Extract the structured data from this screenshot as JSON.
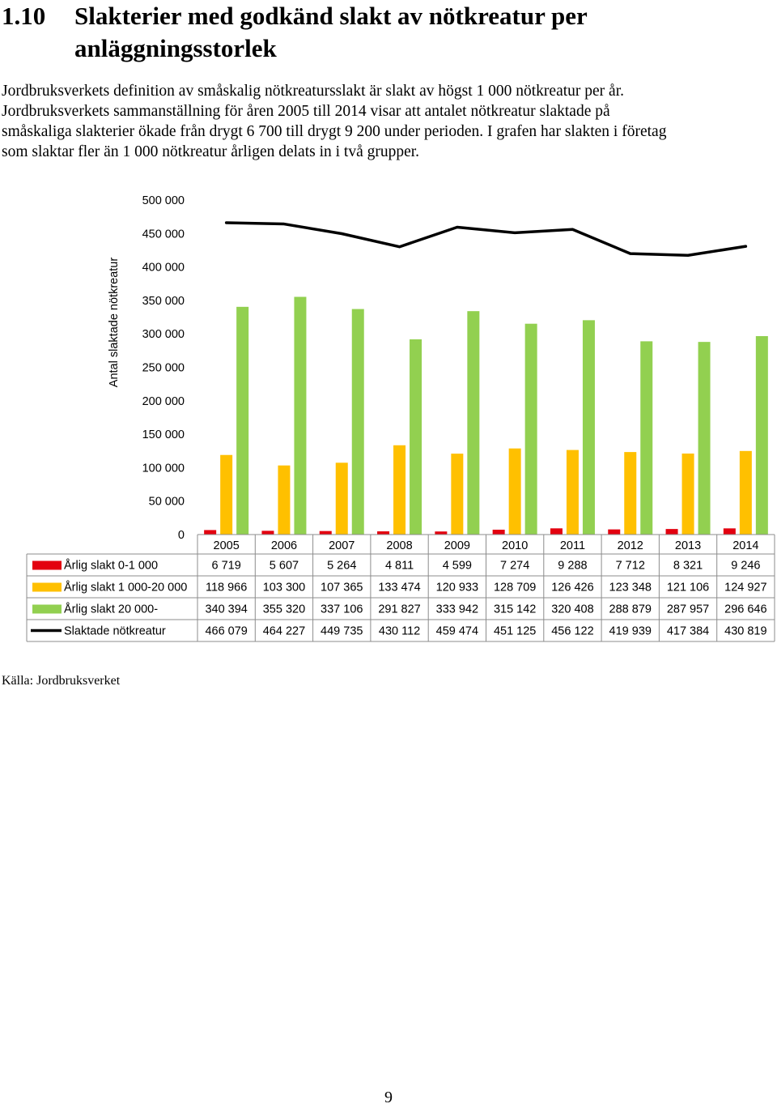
{
  "section": {
    "number": "1.10",
    "title_line1": "Slakterier med godkänd slakt av nötkreatur per",
    "title_line2": "anläggningsstorlek"
  },
  "paragraph": {
    "lines": [
      "Jordbruksverkets definition av småskalig nötkreatursslakt är slakt av högst 1 000 nötkreatur per år.",
      "Jordbruksverkets sammanställning för åren 2005 till 2014 visar att antalet nötkreatur slaktade på",
      "småskaliga slakterier ökade från drygt 6 700 till drygt 9 200 under perioden. I grafen har slakten i företag",
      "som slaktar fler än 1 000 nötkreatur årligen delats in i två grupper."
    ]
  },
  "chart_data": {
    "type": "bar",
    "ylabel": "Antal slaktade nötkreatur",
    "ylim": [
      0,
      500000
    ],
    "y_ticks": [
      0,
      50000,
      100000,
      150000,
      200000,
      250000,
      300000,
      350000,
      400000,
      450000,
      500000
    ],
    "y_tick_labels": [
      "0",
      "50 000",
      "100 000",
      "150 000",
      "200 000",
      "250 000",
      "300 000",
      "350 000",
      "400 000",
      "450 000",
      "500 000"
    ],
    "categories": [
      "2005",
      "2006",
      "2007",
      "2008",
      "2009",
      "2010",
      "2011",
      "2012",
      "2013",
      "2014"
    ],
    "grid": false,
    "legend": "data table below chart",
    "series": [
      {
        "name": "Årlig slakt 0-1 000",
        "type": "bar",
        "color": "#e3000f",
        "values": [
          6719,
          5607,
          5264,
          4811,
          4599,
          7274,
          9288,
          7712,
          8321,
          9246
        ],
        "labels": [
          "6 719",
          "5 607",
          "5 264",
          "4 811",
          "4 599",
          "7 274",
          "9 288",
          "7 712",
          "8 321",
          "9 246"
        ]
      },
      {
        "name": "Årlig slakt 1 000-20 000",
        "type": "bar",
        "color": "#ffc000",
        "values": [
          118966,
          103300,
          107365,
          133474,
          120933,
          128709,
          126426,
          123348,
          121106,
          124927
        ],
        "labels": [
          "118 966",
          "103 300",
          "107 365",
          "133 474",
          "120 933",
          "128 709",
          "126 426",
          "123 348",
          "121 106",
          "124 927"
        ]
      },
      {
        "name": "Årlig slakt 20 000-",
        "type": "bar",
        "color": "#92d050",
        "values": [
          340394,
          355320,
          337106,
          291827,
          333942,
          315142,
          320408,
          288879,
          287957,
          296646
        ],
        "labels": [
          "340 394",
          "355 320",
          "337 106",
          "291 827",
          "333 942",
          "315 142",
          "320 408",
          "288 879",
          "287 957",
          "296 646"
        ]
      },
      {
        "name": "Slaktade nötkreatur",
        "type": "line",
        "color": "#000000",
        "values": [
          466079,
          464227,
          449735,
          430112,
          459474,
          451125,
          456122,
          419939,
          417384,
          430819
        ],
        "labels": [
          "466 079",
          "464 227",
          "449 735",
          "430 112",
          "459 474",
          "451 125",
          "456 122",
          "419 939",
          "417 384",
          "430 819"
        ]
      }
    ]
  },
  "source": "Källa: Jordbruksverket",
  "page_number": "9"
}
